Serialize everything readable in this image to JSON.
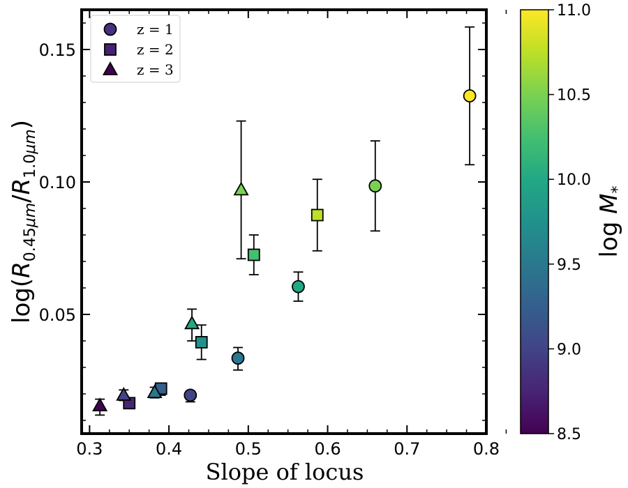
{
  "chart_data": {
    "type": "scatter",
    "xlabel": "Slope of locus",
    "ylabel": "log(R_0.45μm/R_1.0μm)",
    "xlim": [
      0.29,
      0.8
    ],
    "ylim": [
      0.005,
      0.165
    ],
    "xticks": [
      0.3,
      0.4,
      0.5,
      0.6,
      0.7,
      0.8
    ],
    "xtick_labels": [
      "0.3",
      "0.4",
      "0.5",
      "0.6",
      "0.7",
      "0.8"
    ],
    "yticks": [
      0.05,
      0.1,
      0.15
    ],
    "ytick_labels": [
      "0.05",
      "0.10",
      "0.15"
    ],
    "colorbar": {
      "label": "log M_*",
      "range": [
        8.5,
        11.0
      ],
      "ticks": [
        8.5,
        9.0,
        9.5,
        10.0,
        10.5,
        11.0
      ],
      "tick_labels": [
        "8.5",
        "9.0",
        "9.5",
        "10.0",
        "10.5",
        "11.0"
      ],
      "colormap": "viridis"
    },
    "legend": {
      "position": "top-left",
      "entries": [
        {
          "label": "z = 1",
          "marker": "circle",
          "color": "#46327e"
        },
        {
          "label": "z = 2",
          "marker": "square",
          "color": "#482173"
        },
        {
          "label": "z = 3",
          "marker": "triangle",
          "color": "#440154"
        }
      ]
    },
    "series": [
      {
        "name": "z = 1",
        "marker": "circle",
        "points": [
          {
            "x": 0.427,
            "y": 0.0195,
            "err_lo": 0.0025,
            "err_hi": 0.0015,
            "mass": 9.0
          },
          {
            "x": 0.487,
            "y": 0.0335,
            "err_lo": 0.0045,
            "err_hi": 0.004,
            "mass": 9.5
          },
          {
            "x": 0.563,
            "y": 0.0605,
            "err_lo": 0.0055,
            "err_hi": 0.0055,
            "mass": 10.0
          },
          {
            "x": 0.66,
            "y": 0.0985,
            "err_lo": 0.017,
            "err_hi": 0.017,
            "mass": 10.5
          },
          {
            "x": 0.779,
            "y": 0.1325,
            "err_lo": 0.026,
            "err_hi": 0.026,
            "mass": 11.0
          }
        ]
      },
      {
        "name": "z = 2",
        "marker": "square",
        "points": [
          {
            "x": 0.35,
            "y": 0.0165,
            "err_lo": 0.0005,
            "err_hi": 0.0005,
            "mass": 8.75
          },
          {
            "x": 0.39,
            "y": 0.022,
            "err_lo": 0.0025,
            "err_hi": 0.0015,
            "mass": 9.25
          },
          {
            "x": 0.441,
            "y": 0.0395,
            "err_lo": 0.0065,
            "err_hi": 0.0065,
            "mass": 9.75
          },
          {
            "x": 0.507,
            "y": 0.0725,
            "err_lo": 0.0075,
            "err_hi": 0.0075,
            "mass": 10.25
          },
          {
            "x": 0.587,
            "y": 0.0875,
            "err_lo": 0.0135,
            "err_hi": 0.0135,
            "mass": 10.75
          }
        ]
      },
      {
        "name": "z = 3",
        "marker": "triangle",
        "points": [
          {
            "x": 0.313,
            "y": 0.0155,
            "err_lo": 0.0035,
            "err_hi": 0.0025,
            "mass": 8.5
          },
          {
            "x": 0.343,
            "y": 0.0195,
            "err_lo": 0.002,
            "err_hi": 0.002,
            "mass": 9.0
          },
          {
            "x": 0.382,
            "y": 0.0205,
            "err_lo": 0.002,
            "err_hi": 0.002,
            "mass": 9.5
          },
          {
            "x": 0.429,
            "y": 0.0465,
            "err_lo": 0.0065,
            "err_hi": 0.0055,
            "mass": 10.0
          },
          {
            "x": 0.491,
            "y": 0.097,
            "err_lo": 0.026,
            "err_hi": 0.026,
            "mass": 10.5
          }
        ]
      }
    ]
  }
}
